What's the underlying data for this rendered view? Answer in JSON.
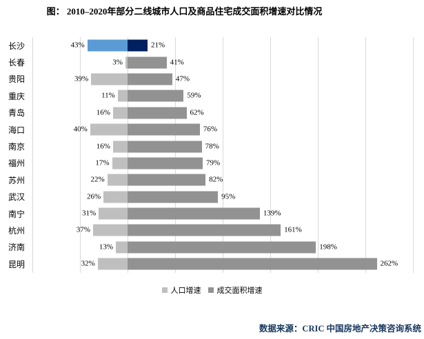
{
  "title": "图：  2010–2020年部分二线城市人口及商品住宅成交面积增速对比情况",
  "source": "数据来源：CRIC 中国房地产决策咨询系统",
  "legend": {
    "items": [
      {
        "label": "人口增速",
        "color": "#BFBFBF"
      },
      {
        "label": "成交面积增速",
        "color": "#929292"
      }
    ]
  },
  "chart_data": {
    "type": "bar",
    "orientation": "horizontal-tornado",
    "title": "图：  2010–2020年部分二线城市人口及商品住宅成交面积增速对比情况",
    "categories": [
      "长沙",
      "长春",
      "贵阳",
      "重庆",
      "青岛",
      "海口",
      "南京",
      "福州",
      "苏州",
      "武汉",
      "南宁",
      "杭州",
      "济南",
      "昆明"
    ],
    "series": [
      {
        "name": "人口增速",
        "side": "left",
        "values": [
          43,
          3,
          39,
          11,
          16,
          40,
          16,
          17,
          22,
          26,
          31,
          37,
          13,
          32
        ],
        "color": "#BFBFBF",
        "highlight_color": "#5B9BD5"
      },
      {
        "name": "成交面积增速",
        "side": "right",
        "values": [
          21,
          41,
          47,
          59,
          62,
          76,
          78,
          79,
          82,
          95,
          139,
          161,
          198,
          262
        ],
        "color": "#929292",
        "highlight_color": "#002060"
      }
    ],
    "highlight_category": "长沙",
    "value_suffix": "%",
    "axis": {
      "min": -100,
      "max": 300,
      "gridline_step": 50
    },
    "gridline_color": "#D9D9D9",
    "legend_position": "bottom",
    "data_labels": "outside-end"
  }
}
